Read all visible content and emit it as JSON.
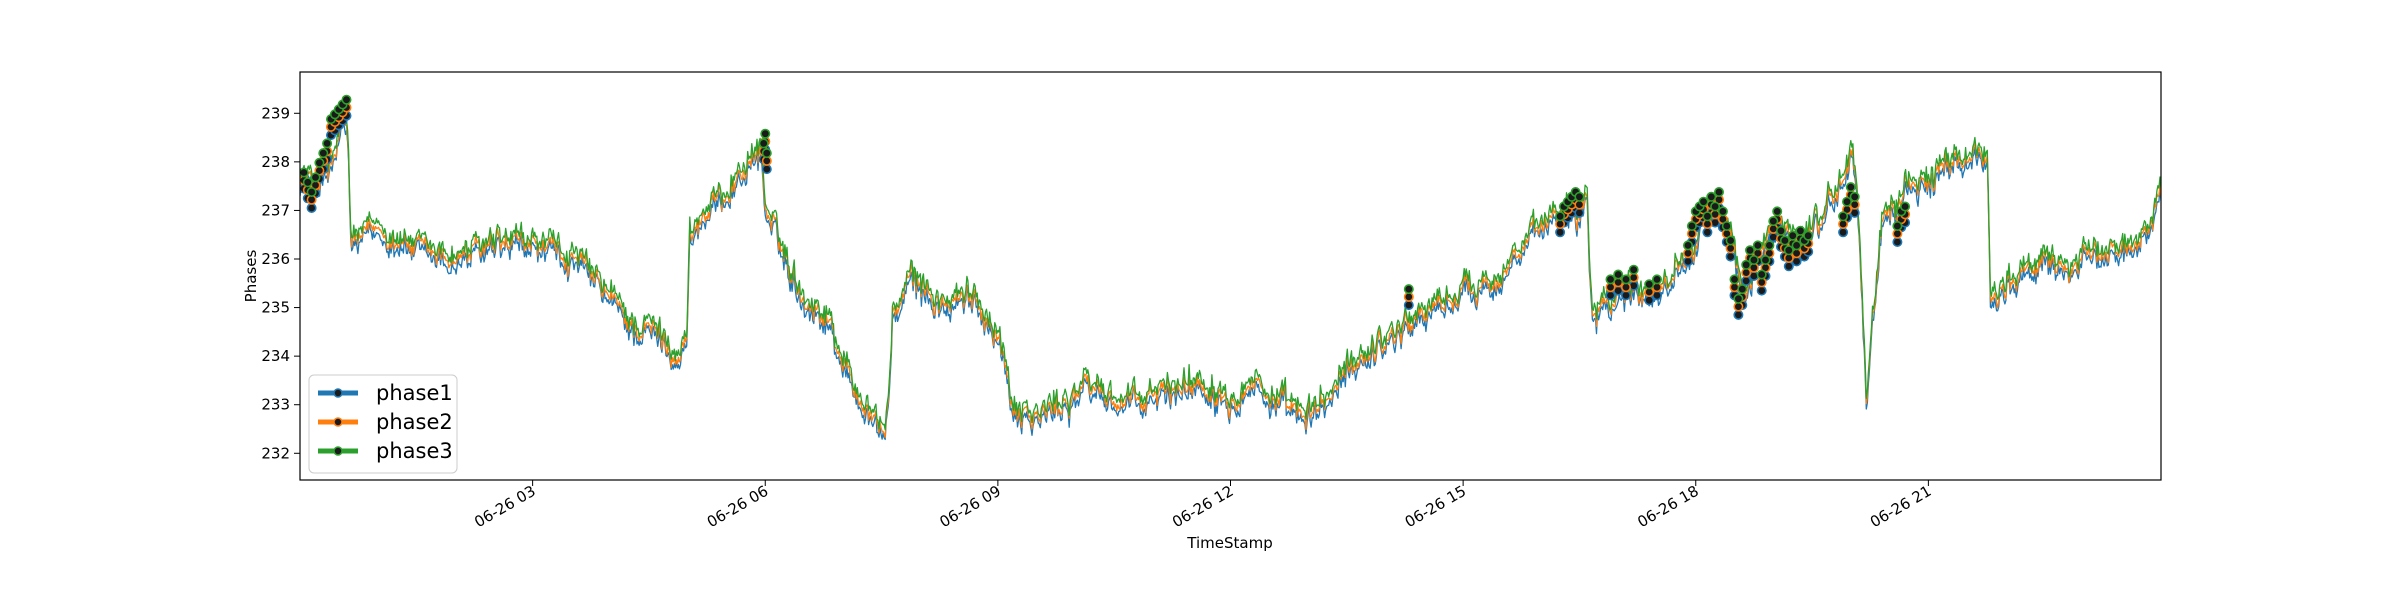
{
  "chart_data": {
    "type": "line",
    "title": "",
    "xlabel": "TimeStamp",
    "ylabel": "Phases",
    "x_ticks": [
      "06-26 03",
      "06-26 06",
      "06-26 09",
      "06-26 12",
      "06-26 15",
      "06-26 18",
      "06-26 21"
    ],
    "x_tick_hours": [
      3,
      6,
      9,
      12,
      15,
      18,
      21
    ],
    "xlim_hours": [
      0.0,
      24.0
    ],
    "y_ticks": [
      "232",
      "233",
      "234",
      "235",
      "236",
      "237",
      "238",
      "239"
    ],
    "ylim": [
      231.45,
      239.85
    ],
    "grid": false,
    "legend_position": "lower-left",
    "series": [
      {
        "name": "phase1",
        "color": "#1f77b4",
        "offset": -0.12,
        "anomaly_offset": -0.25
      },
      {
        "name": "phase2",
        "color": "#ff7f0e",
        "offset": 0.0,
        "anomaly_offset": -0.08
      },
      {
        "name": "phase3",
        "color": "#2ca02c",
        "offset": 0.12,
        "anomaly_offset": 0.08
      }
    ],
    "base_curve": {
      "x_hours": [
        0.0,
        0.15,
        0.35,
        0.45,
        0.55,
        0.62,
        0.65,
        0.68,
        0.85,
        1.0,
        1.3,
        1.6,
        2.0,
        2.4,
        2.8,
        3.2,
        3.6,
        4.0,
        4.3,
        4.6,
        4.9,
        4.99,
        5.02,
        5.3,
        5.6,
        5.95,
        6.0,
        6.3,
        6.5,
        6.8,
        7.1,
        7.35,
        7.55,
        7.65,
        7.9,
        8.3,
        8.7,
        9.0,
        9.2,
        9.5,
        9.8,
        10.2,
        10.5,
        10.8,
        11.2,
        11.6,
        12.0,
        12.3,
        12.6,
        13.0,
        13.4,
        13.6,
        13.8,
        14.2,
        14.6,
        15.0,
        15.4,
        15.7,
        16.0,
        16.3,
        16.5,
        16.6,
        16.64,
        16.66,
        16.9,
        17.2,
        17.6,
        17.9,
        18.1,
        18.3,
        18.5,
        18.6,
        18.75,
        18.9,
        19.1,
        19.4,
        19.7,
        19.9,
        20.0,
        20.08,
        20.15,
        20.2,
        20.4,
        20.8,
        21.2,
        21.6,
        21.76,
        21.8,
        22.1,
        22.5,
        22.9,
        23.3,
        23.7,
        24.0
      ],
      "y": [
        237.7,
        237.6,
        237.7,
        238.1,
        238.8,
        238.5,
        236.5,
        236.3,
        236.5,
        236.6,
        236.4,
        236.1,
        236.0,
        236.2,
        236.3,
        236.2,
        235.9,
        235.2,
        234.6,
        234.5,
        234.0,
        234.3,
        236.5,
        237.0,
        237.6,
        238.3,
        237.0,
        235.9,
        235.2,
        234.8,
        233.5,
        232.8,
        232.4,
        234.8,
        235.6,
        235.0,
        235.2,
        234.5,
        233.0,
        232.7,
        233.0,
        233.4,
        233.1,
        233.0,
        233.3,
        233.5,
        233.2,
        233.5,
        233.0,
        232.7,
        233.4,
        233.9,
        234.1,
        234.6,
        235.0,
        235.3,
        235.6,
        236.1,
        236.6,
        237.1,
        236.9,
        237.6,
        235.6,
        235.0,
        235.2,
        235.4,
        235.4,
        236.2,
        236.8,
        236.9,
        236.4,
        235.2,
        235.8,
        236.2,
        236.5,
        236.4,
        237.1,
        237.6,
        238.2,
        237.5,
        235.0,
        233.2,
        236.8,
        237.5,
        237.8,
        238.2,
        238.1,
        235.3,
        235.6,
        235.9,
        235.9,
        236.1,
        236.3,
        237.5
      ]
    },
    "anomaly_markers": {
      "marker_face": "#1a1a1a",
      "x_hours": [
        0.05,
        0.1,
        0.15,
        0.2,
        0.25,
        0.3,
        0.35,
        0.4,
        0.45,
        0.5,
        0.55,
        0.6,
        5.98,
        6.0,
        6.02,
        14.3,
        16.25,
        16.3,
        16.35,
        16.4,
        16.45,
        16.5,
        16.9,
        17.0,
        17.1,
        17.2,
        17.4,
        17.5,
        17.9,
        17.95,
        18.0,
        18.05,
        18.1,
        18.15,
        18.2,
        18.25,
        18.3,
        18.35,
        18.4,
        18.45,
        18.5,
        18.55,
        18.6,
        18.65,
        18.7,
        18.75,
        18.8,
        18.85,
        18.9,
        18.95,
        19.0,
        19.05,
        19.1,
        19.15,
        19.2,
        19.25,
        19.3,
        19.35,
        19.4,
        19.45,
        19.9,
        19.95,
        20.0,
        20.05,
        20.6,
        20.65,
        20.7
      ],
      "y": [
        237.7,
        237.5,
        237.3,
        237.6,
        237.9,
        238.1,
        238.3,
        238.8,
        238.9,
        239.0,
        239.1,
        239.2,
        238.3,
        238.5,
        238.1,
        235.3,
        236.8,
        237.0,
        237.1,
        237.2,
        237.3,
        237.2,
        235.5,
        235.6,
        235.5,
        235.7,
        235.4,
        235.5,
        236.2,
        236.6,
        236.9,
        237.0,
        237.1,
        236.8,
        237.2,
        237.0,
        237.3,
        236.9,
        236.6,
        236.3,
        235.5,
        235.1,
        235.3,
        235.8,
        236.1,
        235.9,
        236.2,
        235.6,
        235.9,
        236.2,
        236.7,
        236.9,
        236.5,
        236.3,
        236.1,
        236.4,
        236.2,
        236.5,
        236.3,
        236.4,
        236.8,
        237.1,
        237.4,
        237.2,
        236.6,
        236.9,
        237.0
      ]
    }
  }
}
